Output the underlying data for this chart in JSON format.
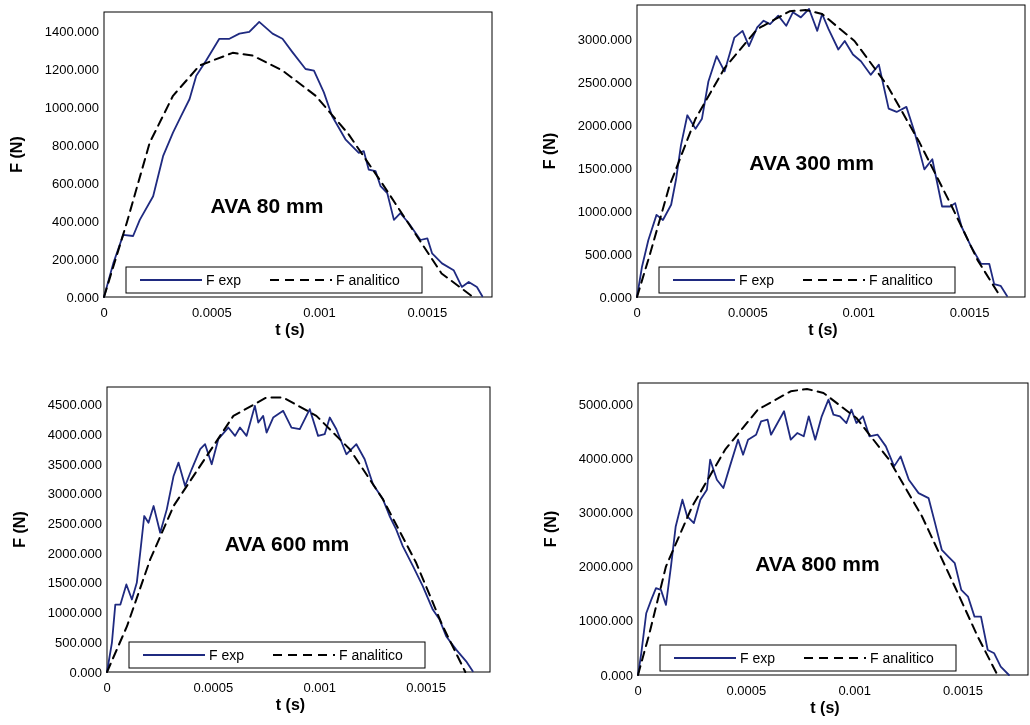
{
  "chart_data": [
    {
      "type": "line",
      "title": "AVA 80 mm",
      "xlabel": "t (s)",
      "ylabel": "F (N)",
      "xlim": [
        0,
        0.0018
      ],
      "ylim": [
        0,
        1500
      ],
      "xticks": [
        0,
        0.0005,
        0.001,
        0.0015
      ],
      "yticks": [
        {
          "value": 0,
          "label": "0.000"
        },
        {
          "value": 200,
          "label": "200.000"
        },
        {
          "value": 400,
          "label": "400.000"
        },
        {
          "value": 600,
          "label": "600.000"
        },
        {
          "value": 800,
          "label": "800.000"
        },
        {
          "value": 1000,
          "label": "1000.000"
        },
        {
          "value": 1200,
          "label": "1200.000"
        },
        {
          "value": 1400,
          "label": "1400.000"
        }
      ],
      "grid": false,
      "legend": "bottom",
      "series": [
        {
          "name": "F exp",
          "color": "#1f2a80",
          "line_style": "solid",
          "x": [
            0,
            4.3e-05,
            8.9e-05,
            0.000135,
            0.000166,
            0.000228,
            0.000274,
            0.00032,
            0.000358,
            0.000397,
            0.000428,
            0.000474,
            0.000535,
            0.000582,
            0.000628,
            0.000674,
            0.00072,
            0.000782,
            0.000828,
            0.000874,
            0.000935,
            0.000974,
            0.00102,
            0.001058,
            0.00112,
            0.001182,
            0.001205,
            0.001228,
            0.00126,
            0.001283,
            0.001314,
            0.001345,
            0.001375,
            0.001414,
            0.001468,
            0.0015,
            0.001522,
            0.001568,
            0.001622,
            0.00166,
            0.001692,
            0.00173,
            0.001755
          ],
          "values": [
            0,
            177,
            327,
            321,
            406,
            530,
            741,
            865,
            953,
            1042,
            1165,
            1245,
            1359,
            1359,
            1386,
            1395,
            1448,
            1386,
            1359,
            1289,
            1200,
            1192,
            1077,
            953,
            830,
            759,
            768,
            671,
            662,
            583,
            547,
            406,
            441,
            388,
            300,
            309,
            230,
            177,
            141,
            53,
            79,
            53,
            4
          ]
        },
        {
          "name": "F analitico",
          "color": "#000000",
          "line_style": "dashed",
          "x": [
            0,
            0.000105,
            0.000212,
            0.00032,
            0.000443,
            0.000597,
            0.000689,
            0.000828,
            0.000982,
            0.001135,
            0.001289,
            0.001443,
            0.001566,
            0.001712
          ],
          "values": [
            0,
            388,
            812,
            1059,
            1218,
            1285,
            1271,
            1192,
            1059,
            856,
            600,
            335,
            124,
            0
          ]
        }
      ]
    },
    {
      "type": "line",
      "title": "AVA 300 mm",
      "xlabel": "t (s)",
      "ylabel": "F (N)",
      "xlim": [
        0,
        0.00175
      ],
      "ylim": [
        0,
        3400
      ],
      "xticks": [
        0,
        0.0005,
        0.001,
        0.0015
      ],
      "yticks": [
        {
          "value": 0,
          "label": "0.000"
        },
        {
          "value": 500,
          "label": "500.000"
        },
        {
          "value": 1000,
          "label": "1000.000"
        },
        {
          "value": 1500,
          "label": "1500.000"
        },
        {
          "value": 2000,
          "label": "2000.000"
        },
        {
          "value": 2500,
          "label": "2500.000"
        },
        {
          "value": 3000,
          "label": "3000.000"
        }
      ],
      "grid": false,
      "legend": "bottom",
      "series": [
        {
          "name": "F exp",
          "color": "#1f2a80",
          "line_style": "solid",
          "x": [
            0,
            2.2e-05,
            5.1e-05,
            8.8e-05,
            0.000117,
            0.000154,
            0.000176,
            0.000198,
            0.000227,
            0.000264,
            0.000293,
            0.000322,
            0.000359,
            0.000395,
            0.000439,
            0.000476,
            0.000505,
            0.000542,
            0.000571,
            0.0006,
            0.000637,
            0.000673,
            0.000703,
            0.000739,
            0.000776,
            0.000813,
            0.000835,
            0.000864,
            0.000908,
            0.000937,
            0.000974,
            0.00101,
            0.001054,
            0.001091,
            0.001135,
            0.001171,
            0.001215,
            0.001252,
            0.001296,
            0.001332,
            0.001376,
            0.001413,
            0.001435,
            0.001464,
            0.001508,
            0.001552,
            0.001589,
            0.001611,
            0.00164,
            0.001669
          ],
          "values": [
            0,
            346,
            661,
            956,
            897,
            1074,
            1368,
            1762,
            2116,
            1958,
            2076,
            2509,
            2804,
            2627,
            3020,
            3099,
            2922,
            3139,
            3217,
            3177,
            3276,
            3158,
            3315,
            3256,
            3354,
            3099,
            3295,
            3118,
            2882,
            2981,
            2823,
            2745,
            2587,
            2705,
            2194,
            2155,
            2214,
            1919,
            1486,
            1604,
            1054,
            1054,
            1093,
            818,
            582,
            385,
            385,
            150,
            130,
            12
          ]
        },
        {
          "name": "F analitico",
          "color": "#000000",
          "line_style": "dashed",
          "x": [
            0,
            5.9e-05,
            0.000146,
            0.000264,
            0.000395,
            0.000542,
            0.000688,
            0.000761,
            0.000835,
            0.000981,
            0.001127,
            0.001274,
            0.00142,
            0.001537,
            0.00164
          ],
          "values": [
            0,
            503,
            1290,
            2076,
            2666,
            3118,
            3327,
            3342,
            3295,
            2981,
            2470,
            1801,
            1054,
            425,
            0
          ]
        }
      ]
    },
    {
      "type": "line",
      "title": "AVA 600 mm",
      "xlabel": "t (s)",
      "ylabel": "F (N)",
      "xlim": [
        0,
        0.0018
      ],
      "ylim": [
        0,
        4800
      ],
      "xticks": [
        0,
        0.0005,
        0.001,
        0.0015
      ],
      "yticks": [
        {
          "value": 0,
          "label": "0.000"
        },
        {
          "value": 500,
          "label": "500.000"
        },
        {
          "value": 1000,
          "label": "1000.000"
        },
        {
          "value": 1500,
          "label": "1500.000"
        },
        {
          "value": 2000,
          "label": "2000.000"
        },
        {
          "value": 2500,
          "label": "2500.000"
        },
        {
          "value": 3000,
          "label": "3000.000"
        },
        {
          "value": 3500,
          "label": "3500.000"
        },
        {
          "value": 4000,
          "label": "4000.000"
        },
        {
          "value": 4500,
          "label": "4500.000"
        }
      ],
      "grid": false,
      "legend": "bottom",
      "series": [
        {
          "name": "F exp",
          "color": "#1f2a80",
          "line_style": "solid",
          "x": [
            0,
            2.3e-05,
            3.9e-05,
            6.3e-05,
            9.1e-05,
            0.000117,
            0.00014,
            0.000156,
            0.000175,
            0.000195,
            0.000219,
            0.00025,
            0.000281,
            0.000313,
            0.000336,
            0.000367,
            0.000398,
            0.000438,
            0.000461,
            0.000492,
            0.000523,
            0.00057,
            0.000602,
            0.000625,
            0.000656,
            0.000695,
            0.000711,
            0.000734,
            0.00075,
            0.000781,
            0.000828,
            0.000867,
            0.000906,
            0.000953,
            0.000992,
            0.001023,
            0.001047,
            0.001078,
            0.001125,
            0.001172,
            0.001211,
            0.00125,
            0.001297,
            0.001328,
            0.001359,
            0.00139,
            0.001438,
            0.001484,
            0.001531,
            0.001563,
            0.001594,
            0.001641,
            0.001688,
            0.001719
          ],
          "values": [
            0,
            489,
            1136,
            1136,
            1474,
            1221,
            1502,
            2008,
            2627,
            2514,
            2796,
            2346,
            2739,
            3302,
            3527,
            3133,
            3414,
            3752,
            3836,
            3499,
            3921,
            4117,
            3977,
            4117,
            3977,
            4483,
            4202,
            4314,
            4033,
            4286,
            4398,
            4117,
            4089,
            4427,
            3977,
            4005,
            4286,
            4089,
            3667,
            3836,
            3583,
            3161,
            2908,
            2627,
            2402,
            2121,
            1783,
            1446,
            1052,
            883,
            602,
            377,
            180,
            11
          ]
        },
        {
          "name": "F analitico",
          "color": "#000000",
          "line_style": "dashed",
          "x": [
            0,
            9.4e-05,
            0.000203,
            0.000313,
            0.000438,
            0.000594,
            0.00075,
            0.000828,
            0.000984,
            0.001141,
            0.001297,
            0.001453,
            0.001578,
            0.001684
          ],
          "values": [
            0,
            771,
            1896,
            2796,
            3471,
            4314,
            4624,
            4624,
            4314,
            3752,
            2908,
            1839,
            771,
            0
          ]
        }
      ]
    },
    {
      "type": "line",
      "title": "AVA 800 mm",
      "xlabel": "t (s)",
      "ylabel": "F (N)",
      "xlim": [
        0,
        0.0018
      ],
      "ylim": [
        0,
        5400
      ],
      "xticks": [
        0,
        0.0005,
        0.001,
        0.0015
      ],
      "yticks": [
        {
          "value": 0,
          "label": "0.000"
        },
        {
          "value": 1000,
          "label": "1000.000"
        },
        {
          "value": 2000,
          "label": "2000.000"
        },
        {
          "value": 3000,
          "label": "3000.000"
        },
        {
          "value": 4000,
          "label": "4000.000"
        },
        {
          "value": 5000,
          "label": "5000.000"
        }
      ],
      "grid": false,
      "legend": "bottom",
      "series": [
        {
          "name": "F exp",
          "color": "#1f2a80",
          "line_style": "solid",
          "x": [
            0,
            1.5e-05,
            3.8e-05,
            6.1e-05,
            8.3e-05,
            0.000106,
            0.000129,
            0.000152,
            0.000174,
            0.000205,
            0.000227,
            0.000258,
            0.000288,
            0.000318,
            0.000333,
            0.000364,
            0.000394,
            0.000424,
            0.000462,
            0.000485,
            0.000508,
            0.000545,
            0.000568,
            0.000598,
            0.000614,
            0.000644,
            0.000674,
            0.000705,
            0.000735,
            0.000765,
            0.000788,
            0.000818,
            0.000848,
            0.000879,
            0.000902,
            0.000932,
            0.000962,
            0.000985,
            0.001008,
            0.001038,
            0.001068,
            0.001106,
            0.001144,
            0.001182,
            0.001212,
            0.00125,
            0.001295,
            0.001341,
            0.001371,
            0.001402,
            0.001432,
            0.001462,
            0.001492,
            0.001523,
            0.001553,
            0.001583,
            0.001614,
            0.001644,
            0.001674,
            0.001712
          ],
          "values": [
            0,
            401,
            1142,
            1389,
            1605,
            1574,
            1296,
            2006,
            2747,
            3241,
            2932,
            2809,
            3241,
            3426,
            3981,
            3611,
            3457,
            3858,
            4352,
            4074,
            4352,
            4444,
            4691,
            4722,
            4444,
            4660,
            4877,
            4352,
            4475,
            4414,
            4784,
            4352,
            4784,
            5093,
            4815,
            4784,
            4660,
            4907,
            4660,
            4784,
            4414,
            4444,
            4228,
            3858,
            4043,
            3611,
            3364,
            3272,
            2809,
            2315,
            2191,
            2068,
            1574,
            1451,
            1080,
            1080,
            463,
            401,
            154,
            0
          ]
        },
        {
          "name": "F analitico",
          "color": "#000000",
          "line_style": "dashed",
          "x": [
            0,
            5.3e-05,
            0.000129,
            0.00025,
            0.000402,
            0.000553,
            0.000705,
            0.00078,
            0.000856,
            0.001008,
            0.001159,
            0.001311,
            0.001462,
            0.001568,
            0.001659
          ],
          "values": [
            0,
            772,
            2006,
            3117,
            4167,
            4907,
            5247,
            5290,
            5216,
            4753,
            3981,
            2932,
            1636,
            710,
            0
          ]
        }
      ]
    }
  ]
}
